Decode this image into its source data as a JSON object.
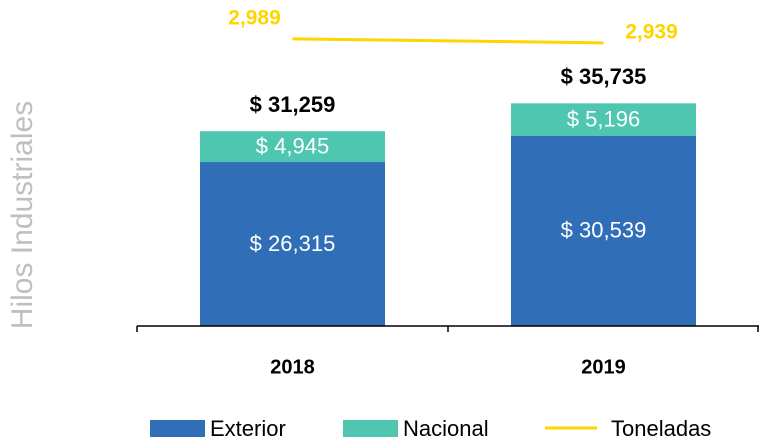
{
  "chart_data": {
    "type": "bar",
    "stacked": true,
    "y_label": "Hilos Industriales",
    "categories": [
      "2018",
      "2019"
    ],
    "series": [
      {
        "name": "Exterior",
        "color": "#306eb8",
        "values": [
          26315,
          30539
        ],
        "value_labels": [
          "$ 26,315",
          "$ 30,539"
        ]
      },
      {
        "name": "Nacional",
        "color": "#4ec6b0",
        "values": [
          4945,
          5196
        ],
        "value_labels": [
          "$ 4,945",
          "$ 5,196"
        ]
      },
      {
        "name": "Toneladas",
        "type": "line",
        "axis": "y2",
        "color": "#ffd500",
        "values": [
          2989,
          2939
        ],
        "value_labels": [
          "2,989",
          "2,939"
        ]
      }
    ],
    "totals": [
      31259,
      35735
    ],
    "total_labels": [
      "$ 31,259",
      "$ 35,735"
    ],
    "ylim": [
      0,
      52000
    ],
    "y2lim": [
      -600,
      3450
    ],
    "legend": "bottom"
  }
}
